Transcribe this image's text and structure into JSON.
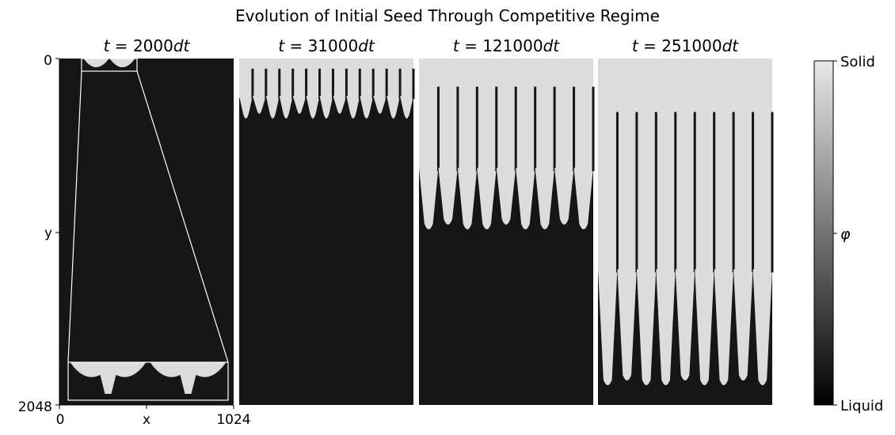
{
  "figure": {
    "title": "Evolution of Initial Seed Through Competitive Regime"
  },
  "chart_data": {
    "type": "heatmap",
    "axes": {
      "y_tick_top": "0",
      "y_label": "y",
      "y_tick_bottom": "2048",
      "x_tick_left": "0",
      "x_label": "x",
      "x_tick_right": "1024",
      "xlim": [
        0,
        1024
      ],
      "ylim": [
        2048,
        0
      ],
      "grid": false
    },
    "panels": [
      {
        "title_prefix": "t = ",
        "step": "2000",
        "unit": "dt",
        "front_depth": 0.035,
        "finger_count": 2,
        "inset": true
      },
      {
        "title_prefix": "t = ",
        "step": "31000",
        "unit": "dt",
        "front_depth": 0.18,
        "finger_count": 13,
        "inset": false
      },
      {
        "title_prefix": "t = ",
        "step": "121000",
        "unit": "dt",
        "front_depth": 0.5,
        "finger_count": 9,
        "inset": false
      },
      {
        "title_prefix": "t = ",
        "step": "251000",
        "unit": "dt",
        "front_depth": 0.95,
        "finger_count": 9,
        "inset": false
      }
    ],
    "colorbar": {
      "label": "φ",
      "top_label": "Solid",
      "bottom_label": "Liquid",
      "colormap": "gray",
      "solid_color": "#dcdcdc",
      "liquid_color": "#161616"
    }
  }
}
